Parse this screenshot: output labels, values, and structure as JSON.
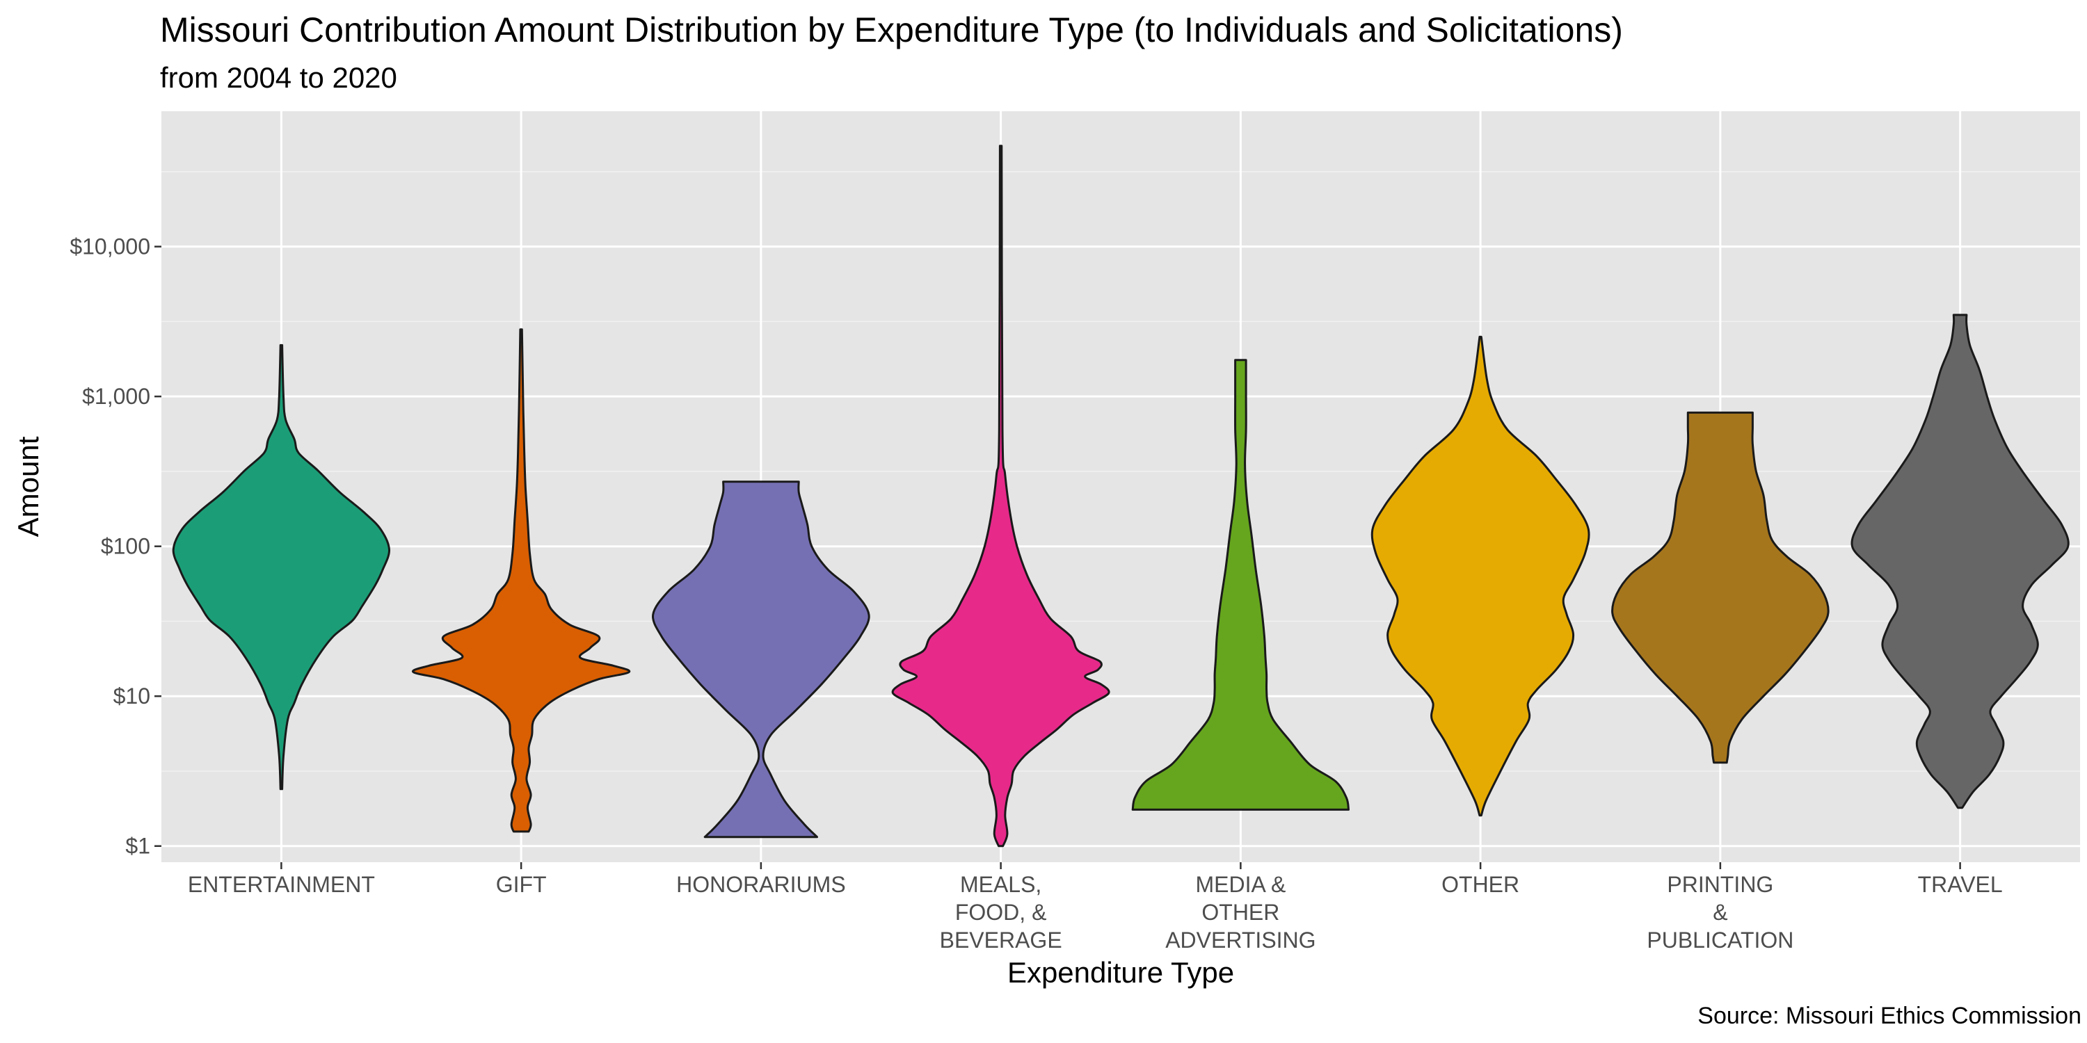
{
  "chart_data": {
    "type": "violin",
    "title": "Missouri Contribution Amount Distribution by Expenditure Type (to Individuals and Solicitations)",
    "subtitle": "from 2004 to 2020",
    "caption": "Source: Missouri Ethics Commission",
    "xlabel": "Expenditure Type",
    "ylabel": "Amount",
    "y_scale": "log10",
    "ylim": [
      0.78,
      80000
    ],
    "y_ticks": [
      1,
      10,
      100,
      1000,
      10000
    ],
    "y_tick_labels": [
      "$1",
      "$10",
      "$100",
      "$1,000",
      "$10,000"
    ],
    "grid": true,
    "legend": "none",
    "categories": [
      {
        "name": "ENTERTAINMENT",
        "label_lines": [
          "ENTERTAINMENT"
        ],
        "color": "#1B9E77",
        "min": 2.4,
        "max": 2200,
        "profile": [
          [
            2.4,
            0.0
          ],
          [
            4,
            0.02
          ],
          [
            7,
            0.06
          ],
          [
            9,
            0.12
          ],
          [
            12,
            0.19
          ],
          [
            18,
            0.33
          ],
          [
            25,
            0.48
          ],
          [
            32,
            0.66
          ],
          [
            40,
            0.75
          ],
          [
            55,
            0.87
          ],
          [
            70,
            0.94
          ],
          [
            95,
            1.0
          ],
          [
            130,
            0.92
          ],
          [
            170,
            0.76
          ],
          [
            230,
            0.54
          ],
          [
            320,
            0.34
          ],
          [
            420,
            0.16
          ],
          [
            520,
            0.12
          ],
          [
            700,
            0.04
          ],
          [
            1000,
            0.02
          ],
          [
            2200,
            0.0
          ]
        ]
      },
      {
        "name": "GIFT",
        "label_lines": [
          "GIFT"
        ],
        "color": "#D95F02",
        "min": 1.25,
        "max": 2800,
        "profile": [
          [
            1.25,
            0.07
          ],
          [
            1.4,
            0.09
          ],
          [
            1.8,
            0.06
          ],
          [
            2.2,
            0.09
          ],
          [
            2.8,
            0.05
          ],
          [
            3.6,
            0.08
          ],
          [
            4.5,
            0.07
          ],
          [
            5.5,
            0.1
          ],
          [
            7,
            0.12
          ],
          [
            9,
            0.26
          ],
          [
            11,
            0.47
          ],
          [
            13,
            0.72
          ],
          [
            14.5,
            1.0
          ],
          [
            16,
            0.85
          ],
          [
            18,
            0.55
          ],
          [
            21,
            0.64
          ],
          [
            25,
            0.72
          ],
          [
            30,
            0.45
          ],
          [
            38,
            0.28
          ],
          [
            48,
            0.22
          ],
          [
            60,
            0.12
          ],
          [
            90,
            0.08
          ],
          [
            150,
            0.06
          ],
          [
            250,
            0.04
          ],
          [
            400,
            0.03
          ],
          [
            800,
            0.02
          ],
          [
            2800,
            0.0
          ]
        ]
      },
      {
        "name": "HONORARIUMS",
        "label_lines": [
          "HONORARIUMS"
        ],
        "color": "#7570B3",
        "min": 1.15,
        "max": 270,
        "profile": [
          [
            1.15,
            0.52
          ],
          [
            1.4,
            0.4
          ],
          [
            2,
            0.22
          ],
          [
            3,
            0.09
          ],
          [
            4,
            0.02
          ],
          [
            5.5,
            0.09
          ],
          [
            8,
            0.32
          ],
          [
            12,
            0.56
          ],
          [
            18,
            0.77
          ],
          [
            25,
            0.92
          ],
          [
            35,
            1.0
          ],
          [
            50,
            0.86
          ],
          [
            70,
            0.62
          ],
          [
            100,
            0.47
          ],
          [
            140,
            0.43
          ],
          [
            190,
            0.38
          ],
          [
            230,
            0.35
          ],
          [
            270,
            0.35
          ]
        ]
      },
      {
        "name": "MEALS, FOOD, & BEVERAGE",
        "label_lines": [
          "MEALS,",
          "FOOD, &",
          "BEVERAGE"
        ],
        "color": "#E7298A",
        "min": 1.0,
        "max": 47000,
        "profile": [
          [
            1.0,
            0.02
          ],
          [
            1.2,
            0.06
          ],
          [
            1.6,
            0.04
          ],
          [
            2.1,
            0.06
          ],
          [
            2.6,
            0.1
          ],
          [
            3.2,
            0.12
          ],
          [
            4,
            0.22
          ],
          [
            5,
            0.38
          ],
          [
            6,
            0.52
          ],
          [
            7.5,
            0.67
          ],
          [
            9,
            0.85
          ],
          [
            10.5,
            1.0
          ],
          [
            12,
            0.93
          ],
          [
            13.5,
            0.78
          ],
          [
            15,
            0.9
          ],
          [
            17,
            0.92
          ],
          [
            20,
            0.72
          ],
          [
            25,
            0.65
          ],
          [
            33,
            0.46
          ],
          [
            45,
            0.35
          ],
          [
            65,
            0.24
          ],
          [
            100,
            0.15
          ],
          [
            160,
            0.09
          ],
          [
            300,
            0.04
          ],
          [
            600,
            0.015
          ],
          [
            47000,
            0.0
          ]
        ]
      },
      {
        "name": "MEDIA & OTHER ADVERTISING",
        "label_lines": [
          "MEDIA &",
          "OTHER",
          "ADVERTISING"
        ],
        "color": "#66A61E",
        "min": 1.75,
        "max": 1750,
        "profile": [
          [
            1.75,
            1.0
          ],
          [
            2.1,
            0.98
          ],
          [
            2.7,
            0.88
          ],
          [
            3.5,
            0.64
          ],
          [
            5,
            0.46
          ],
          [
            7,
            0.3
          ],
          [
            9,
            0.25
          ],
          [
            11,
            0.24
          ],
          [
            14,
            0.24
          ],
          [
            18,
            0.23
          ],
          [
            25,
            0.22
          ],
          [
            40,
            0.19
          ],
          [
            70,
            0.14
          ],
          [
            120,
            0.1
          ],
          [
            200,
            0.06
          ],
          [
            350,
            0.04
          ],
          [
            600,
            0.05
          ],
          [
            1000,
            0.05
          ],
          [
            1750,
            0.05
          ]
        ]
      },
      {
        "name": "OTHER",
        "label_lines": [
          "OTHER"
        ],
        "color": "#E6AB02",
        "min": 1.6,
        "max": 2500,
        "profile": [
          [
            1.6,
            0.0
          ],
          [
            2,
            0.05
          ],
          [
            3,
            0.17
          ],
          [
            5,
            0.33
          ],
          [
            7,
            0.45
          ],
          [
            9,
            0.44
          ],
          [
            11,
            0.52
          ],
          [
            15,
            0.7
          ],
          [
            20,
            0.82
          ],
          [
            26,
            0.86
          ],
          [
            35,
            0.8
          ],
          [
            45,
            0.77
          ],
          [
            60,
            0.86
          ],
          [
            90,
            0.97
          ],
          [
            130,
            1.0
          ],
          [
            190,
            0.88
          ],
          [
            280,
            0.7
          ],
          [
            400,
            0.52
          ],
          [
            600,
            0.25
          ],
          [
            900,
            0.12
          ],
          [
            1300,
            0.06
          ],
          [
            2500,
            0.0
          ]
        ]
      },
      {
        "name": "PRINTING & PUBLICATION",
        "label_lines": [
          "PRINTING",
          "&",
          "PUBLICATION"
        ],
        "color": "#A6761D",
        "min": 3.6,
        "max": 780,
        "profile": [
          [
            3.6,
            0.06
          ],
          [
            4,
            0.07
          ],
          [
            5,
            0.09
          ],
          [
            7,
            0.2
          ],
          [
            10,
            0.4
          ],
          [
            14,
            0.6
          ],
          [
            20,
            0.78
          ],
          [
            28,
            0.93
          ],
          [
            36,
            1.0
          ],
          [
            48,
            0.96
          ],
          [
            65,
            0.83
          ],
          [
            85,
            0.62
          ],
          [
            110,
            0.48
          ],
          [
            150,
            0.43
          ],
          [
            220,
            0.4
          ],
          [
            320,
            0.33
          ],
          [
            480,
            0.3
          ],
          [
            620,
            0.3
          ],
          [
            780,
            0.3
          ]
        ]
      },
      {
        "name": "TRAVEL",
        "label_lines": [
          "TRAVEL"
        ],
        "color": "#666666",
        "min": 1.8,
        "max": 3500,
        "profile": [
          [
            1.8,
            0.02
          ],
          [
            2.3,
            0.12
          ],
          [
            3,
            0.27
          ],
          [
            4,
            0.37
          ],
          [
            5,
            0.4
          ],
          [
            6.5,
            0.33
          ],
          [
            8,
            0.28
          ],
          [
            10,
            0.38
          ],
          [
            13,
            0.52
          ],
          [
            17,
            0.65
          ],
          [
            22,
            0.72
          ],
          [
            30,
            0.66
          ],
          [
            40,
            0.58
          ],
          [
            55,
            0.66
          ],
          [
            75,
            0.85
          ],
          [
            100,
            1.0
          ],
          [
            140,
            0.94
          ],
          [
            200,
            0.78
          ],
          [
            300,
            0.6
          ],
          [
            450,
            0.44
          ],
          [
            700,
            0.32
          ],
          [
            1000,
            0.25
          ],
          [
            1500,
            0.18
          ],
          [
            2200,
            0.09
          ],
          [
            3000,
            0.06
          ],
          [
            3500,
            0.06
          ]
        ]
      }
    ]
  }
}
